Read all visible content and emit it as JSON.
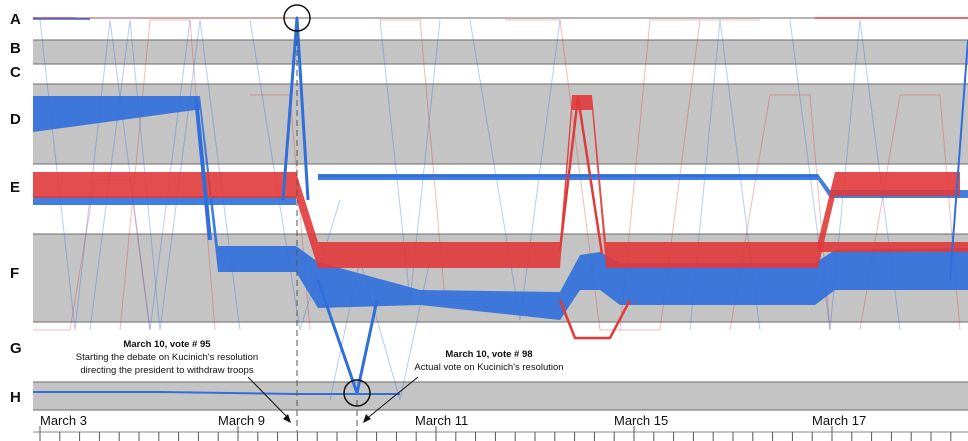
{
  "chart_data": {
    "type": "parallel-sets-flow",
    "rows": [
      "A",
      "B",
      "C",
      "D",
      "E",
      "F",
      "G",
      "H"
    ],
    "x_tick_labels": [
      "March 3",
      "March 9",
      "March 11",
      "March 15",
      "March 17"
    ],
    "series": [
      {
        "color": "#e03a3a"
      },
      {
        "color": "#2f6fdb"
      }
    ],
    "annotations": [
      {
        "title": "March 10, vote # 95",
        "lines": [
          "Starting the debate on Kucinich's resolution",
          "directing the president to withdraw troops"
        ]
      },
      {
        "title": "March 10, vote # 98",
        "lines": [
          "Actual vote on Kucinich's resolution"
        ]
      }
    ],
    "grid": false
  },
  "colors": {
    "gray_band": "#c4c4c4",
    "band_border": "#6b6b6b",
    "red": "#e03a3a",
    "blue": "#2f6fdb"
  }
}
